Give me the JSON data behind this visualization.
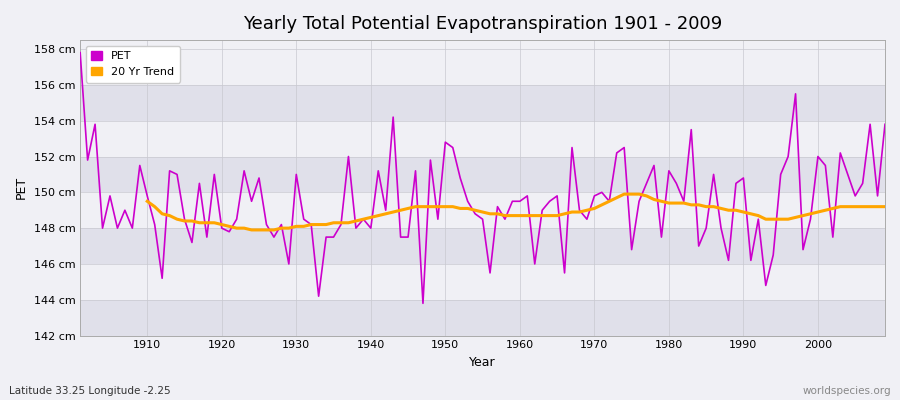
{
  "title": "Yearly Total Potential Evapotranspiration 1901 - 2009",
  "xlabel": "Year",
  "ylabel": "PET",
  "subtitle": "Latitude 33.25 Longitude -2.25",
  "watermark": "worldspecies.org",
  "ylim": [
    142,
    158.5
  ],
  "ytick_labels": [
    "142 cm",
    "144 cm",
    "146 cm",
    "148 cm",
    "150 cm",
    "152 cm",
    "154 cm",
    "156 cm",
    "158 cm"
  ],
  "ytick_values": [
    142,
    144,
    146,
    148,
    150,
    152,
    154,
    156,
    158
  ],
  "pet_color": "#CC00CC",
  "trend_color": "#FFA500",
  "bg_color": "#F0F0F5",
  "band_color_dark": "#E0E0EA",
  "band_color_light": "#F0F0F5",
  "years": [
    1901,
    1902,
    1903,
    1904,
    1905,
    1906,
    1907,
    1908,
    1909,
    1910,
    1911,
    1912,
    1913,
    1914,
    1915,
    1916,
    1917,
    1918,
    1919,
    1920,
    1921,
    1922,
    1923,
    1924,
    1925,
    1926,
    1927,
    1928,
    1929,
    1930,
    1931,
    1932,
    1933,
    1934,
    1935,
    1936,
    1937,
    1938,
    1939,
    1940,
    1941,
    1942,
    1943,
    1944,
    1945,
    1946,
    1947,
    1948,
    1949,
    1950,
    1951,
    1952,
    1953,
    1954,
    1955,
    1956,
    1957,
    1958,
    1959,
    1960,
    1961,
    1962,
    1963,
    1964,
    1965,
    1966,
    1967,
    1968,
    1969,
    1970,
    1971,
    1972,
    1973,
    1974,
    1975,
    1976,
    1977,
    1978,
    1979,
    1980,
    1981,
    1982,
    1983,
    1984,
    1985,
    1986,
    1987,
    1988,
    1989,
    1990,
    1991,
    1992,
    1993,
    1994,
    1995,
    1996,
    1997,
    1998,
    1999,
    2000,
    2001,
    2002,
    2003,
    2004,
    2005,
    2006,
    2007,
    2008,
    2009
  ],
  "pet_values": [
    157.8,
    151.8,
    153.8,
    148.0,
    149.8,
    148.0,
    149.0,
    148.0,
    151.5,
    149.8,
    148.2,
    145.2,
    151.2,
    151.0,
    148.5,
    147.2,
    150.5,
    147.5,
    151.0,
    148.0,
    147.8,
    148.5,
    151.2,
    149.5,
    150.8,
    148.2,
    147.5,
    148.2,
    146.0,
    151.0,
    148.5,
    148.2,
    144.2,
    147.5,
    147.5,
    148.2,
    152.0,
    148.0,
    148.5,
    148.0,
    151.2,
    149.0,
    154.2,
    147.5,
    147.5,
    151.2,
    143.8,
    151.8,
    148.5,
    152.8,
    152.5,
    150.8,
    149.5,
    148.8,
    148.5,
    145.5,
    149.2,
    148.5,
    149.5,
    149.5,
    149.8,
    146.0,
    149.0,
    149.5,
    149.8,
    145.5,
    152.5,
    149.0,
    148.5,
    149.8,
    150.0,
    149.5,
    152.2,
    152.5,
    146.8,
    149.5,
    150.5,
    151.5,
    147.5,
    151.2,
    150.5,
    149.5,
    153.5,
    147.0,
    148.0,
    151.0,
    148.0,
    146.2,
    150.5,
    150.8,
    146.2,
    148.5,
    144.8,
    146.5,
    151.0,
    152.0,
    155.5,
    146.8,
    148.5,
    152.0,
    151.5,
    147.5,
    152.2,
    151.0,
    149.8,
    150.5,
    153.8,
    149.8,
    153.8
  ],
  "trend_years": [
    1910,
    1911,
    1912,
    1913,
    1914,
    1915,
    1916,
    1917,
    1918,
    1919,
    1920,
    1921,
    1922,
    1923,
    1924,
    1925,
    1926,
    1927,
    1928,
    1929,
    1930,
    1931,
    1932,
    1933,
    1934,
    1935,
    1936,
    1937,
    1938,
    1939,
    1940,
    1941,
    1942,
    1943,
    1944,
    1945,
    1946,
    1947,
    1948,
    1949,
    1950,
    1951,
    1952,
    1953,
    1954,
    1955,
    1956,
    1957,
    1958,
    1959,
    1960,
    1961,
    1962,
    1963,
    1964,
    1965,
    1966,
    1967,
    1968,
    1969,
    1970,
    1971,
    1972,
    1973,
    1974,
    1975,
    1976,
    1977,
    1978,
    1979,
    1980,
    1981,
    1982,
    1983,
    1984,
    1985,
    1986,
    1987,
    1988,
    1989,
    1990,
    1991,
    1992,
    1993,
    1994,
    1995,
    1996,
    1997,
    1998,
    1999,
    2000,
    2001,
    2002,
    2003,
    2004,
    2005,
    2006,
    2007,
    2008,
    2009
  ],
  "trend_values": [
    149.5,
    149.2,
    148.8,
    148.7,
    148.5,
    148.4,
    148.4,
    148.3,
    148.3,
    148.3,
    148.2,
    148.1,
    148.0,
    148.0,
    147.9,
    147.9,
    147.9,
    147.9,
    148.0,
    148.0,
    148.1,
    148.1,
    148.2,
    148.2,
    148.2,
    148.3,
    148.3,
    148.3,
    148.4,
    148.5,
    148.6,
    148.7,
    148.8,
    148.9,
    149.0,
    149.1,
    149.2,
    149.2,
    149.2,
    149.2,
    149.2,
    149.2,
    149.1,
    149.1,
    149.0,
    148.9,
    148.8,
    148.8,
    148.7,
    148.7,
    148.7,
    148.7,
    148.7,
    148.7,
    148.7,
    148.7,
    148.8,
    148.9,
    148.9,
    149.0,
    149.1,
    149.3,
    149.5,
    149.7,
    149.9,
    149.9,
    149.9,
    149.8,
    149.6,
    149.5,
    149.4,
    149.4,
    149.4,
    149.3,
    149.3,
    149.2,
    149.2,
    149.1,
    149.0,
    149.0,
    148.9,
    148.8,
    148.7,
    148.5,
    148.5,
    148.5,
    148.5,
    148.6,
    148.7,
    148.8,
    148.9,
    149.0,
    149.1,
    149.2,
    149.2,
    149.2,
    149.2,
    149.2,
    149.2,
    149.2
  ]
}
